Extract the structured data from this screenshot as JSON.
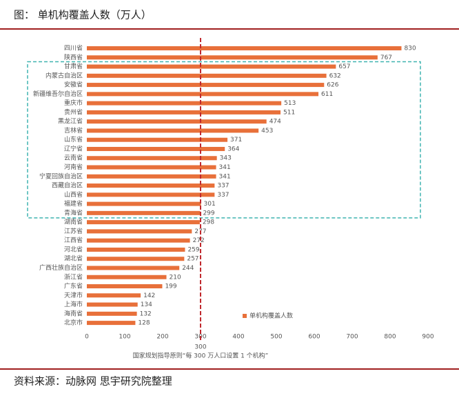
{
  "chart_data": {
    "type": "hbar",
    "title": "图： 单机构覆盖人数（万人）",
    "source": "资料来源：动脉网 思宇研究院整理",
    "categories": [
      "四川省",
      "陕西省",
      "甘肃省",
      "内蒙古自治区",
      "安徽省",
      "新疆维吾尔自治区",
      "重庆市",
      "贵州省",
      "黑龙江省",
      "吉林省",
      "山东省",
      "辽宁省",
      "云南省",
      "河南省",
      "宁夏回族自治区",
      "西藏自治区",
      "山西省",
      "福建省",
      "青海省",
      "湖南省",
      "江苏省",
      "江西省",
      "河北省",
      "湖北省",
      "广西壮族自治区",
      "浙江省",
      "广东省",
      "天津市",
      "上海市",
      "海南省",
      "北京市"
    ],
    "series": [
      {
        "name": "单机构覆盖人数",
        "color": "#e8703a",
        "values": [
          830,
          767,
          657,
          632,
          626,
          611,
          513,
          511,
          474,
          453,
          371,
          364,
          343,
          341,
          341,
          337,
          337,
          301,
          299,
          298,
          277,
          272,
          259,
          257,
          244,
          210,
          199,
          142,
          134,
          132,
          128
        ]
      }
    ],
    "xlim": [
      0,
      900
    ],
    "xticks": [
      0,
      100,
      200,
      300,
      400,
      500,
      600,
      700,
      800,
      900
    ],
    "reference_line": {
      "value": 300,
      "label": "国家规划指导原则“每 300 万人口设置 1 个机构”",
      "color": "#c0282d"
    }
  }
}
